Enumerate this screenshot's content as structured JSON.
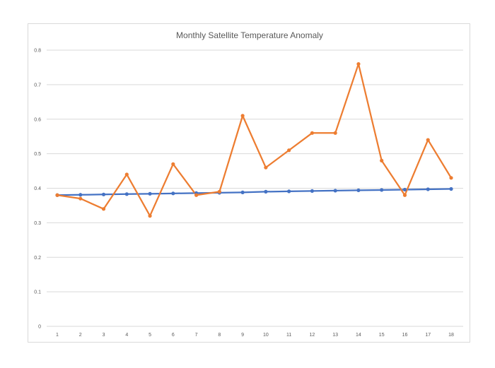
{
  "chart_data": {
    "type": "line",
    "title": "Monthly Satellite Temperature Anomaly",
    "xlabel": "",
    "ylabel": "",
    "x": [
      1,
      2,
      3,
      4,
      5,
      6,
      7,
      8,
      9,
      10,
      11,
      12,
      13,
      14,
      15,
      16,
      17,
      18
    ],
    "xtick_labels": [
      "1",
      "2",
      "3",
      "4",
      "5",
      "6",
      "7",
      "8",
      "9",
      "10",
      "11",
      "12",
      "13",
      "14",
      "15",
      "16",
      "17",
      "18"
    ],
    "ylim": [
      0,
      0.8
    ],
    "yticks": [
      0,
      0.1,
      0.2,
      0.3,
      0.4,
      0.5,
      0.6,
      0.7,
      0.8
    ],
    "ytick_labels": [
      "0",
      "0.1",
      "0.2",
      "0.3",
      "0.4",
      "0.5",
      "0.6",
      "0.7",
      "0.8"
    ],
    "grid": true,
    "legend": "none",
    "series": [
      {
        "color": "#4472c4",
        "values": [
          0.38,
          0.381,
          0.382,
          0.383,
          0.384,
          0.385,
          0.386,
          0.387,
          0.388,
          0.39,
          0.391,
          0.392,
          0.393,
          0.394,
          0.395,
          0.396,
          0.397,
          0.398
        ]
      },
      {
        "color": "#ed7d31",
        "values": [
          0.38,
          0.37,
          0.34,
          0.44,
          0.32,
          0.47,
          0.38,
          0.39,
          0.61,
          0.46,
          0.51,
          0.56,
          0.56,
          0.76,
          0.48,
          0.38,
          0.54,
          0.43
        ]
      }
    ]
  }
}
